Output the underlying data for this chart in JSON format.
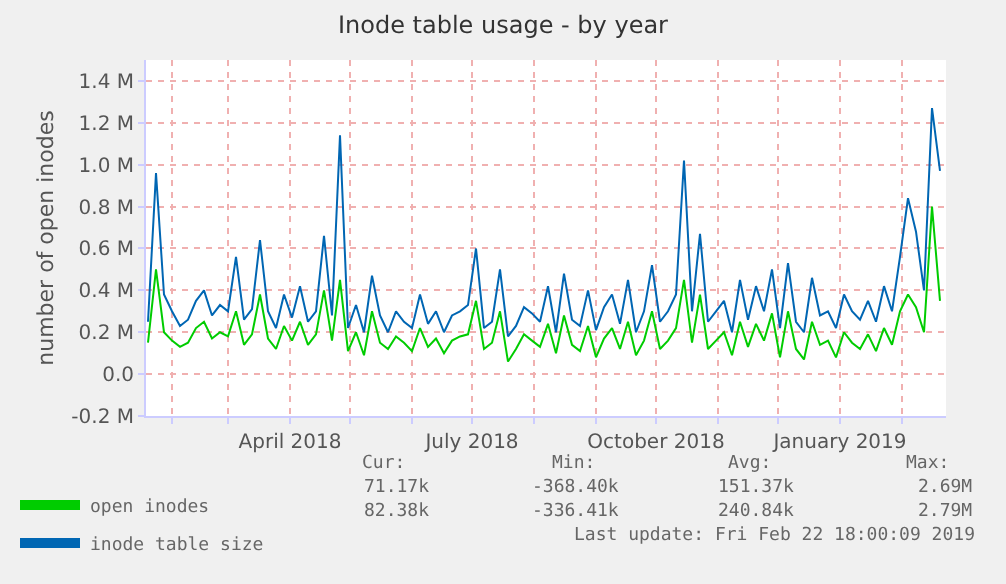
{
  "chart_data": {
    "type": "line",
    "title": "Inode table usage - by year",
    "ylabel": "number of open inodes",
    "x": [
      "2018-01-20",
      "2018-01-24",
      "2018-01-28",
      "2018-02-01",
      "2018-02-05",
      "2018-02-09",
      "2018-02-13",
      "2018-02-17",
      "2018-02-21",
      "2018-02-25",
      "2018-03-01",
      "2018-03-05",
      "2018-03-09",
      "2018-03-13",
      "2018-03-17",
      "2018-03-21",
      "2018-03-25",
      "2018-03-29",
      "2018-04-02",
      "2018-04-06",
      "2018-04-10",
      "2018-04-14",
      "2018-04-18",
      "2018-04-22",
      "2018-04-26",
      "2018-04-30",
      "2018-05-04",
      "2018-05-08",
      "2018-05-12",
      "2018-05-16",
      "2018-05-20",
      "2018-05-24",
      "2018-05-28",
      "2018-06-01",
      "2018-06-05",
      "2018-06-09",
      "2018-06-13",
      "2018-06-17",
      "2018-06-21",
      "2018-06-25",
      "2018-06-29",
      "2018-07-03",
      "2018-07-07",
      "2018-07-11",
      "2018-07-15",
      "2018-07-19",
      "2018-07-23",
      "2018-07-27",
      "2018-07-31",
      "2018-08-04",
      "2018-08-08",
      "2018-08-12",
      "2018-08-16",
      "2018-08-20",
      "2018-08-24",
      "2018-08-28",
      "2018-09-01",
      "2018-09-05",
      "2018-09-09",
      "2018-09-13",
      "2018-09-17",
      "2018-09-21",
      "2018-09-25",
      "2018-09-29",
      "2018-10-03",
      "2018-10-07",
      "2018-10-11",
      "2018-10-15",
      "2018-10-19",
      "2018-10-23",
      "2018-10-27",
      "2018-10-31",
      "2018-11-04",
      "2018-11-08",
      "2018-11-12",
      "2018-11-16",
      "2018-11-20",
      "2018-11-24",
      "2018-11-28",
      "2018-12-02",
      "2018-12-06",
      "2018-12-10",
      "2018-12-14",
      "2018-12-18",
      "2018-12-22",
      "2018-12-26",
      "2018-12-30",
      "2019-01-03",
      "2019-01-07",
      "2019-01-11",
      "2019-01-15",
      "2019-01-19",
      "2019-01-23",
      "2019-01-27",
      "2019-01-31",
      "2019-02-04",
      "2019-02-08",
      "2019-02-12",
      "2019-02-16",
      "2019-02-20"
    ],
    "series": [
      {
        "name": "open inodes",
        "color": "#00cc00",
        "values": [
          150000,
          500000,
          200000,
          160000,
          130000,
          150000,
          220000,
          250000,
          170000,
          200000,
          180000,
          300000,
          140000,
          190000,
          380000,
          170000,
          120000,
          230000,
          160000,
          250000,
          140000,
          190000,
          400000,
          160000,
          450000,
          110000,
          200000,
          90000,
          300000,
          150000,
          120000,
          180000,
          150000,
          110000,
          220000,
          130000,
          170000,
          100000,
          160000,
          180000,
          190000,
          350000,
          120000,
          150000,
          300000,
          60000,
          120000,
          190000,
          160000,
          130000,
          240000,
          100000,
          280000,
          140000,
          110000,
          230000,
          80000,
          170000,
          220000,
          120000,
          250000,
          90000,
          160000,
          300000,
          120000,
          160000,
          220000,
          450000,
          150000,
          380000,
          120000,
          160000,
          200000,
          90000,
          250000,
          130000,
          240000,
          160000,
          290000,
          80000,
          300000,
          120000,
          70000,
          250000,
          140000,
          160000,
          80000,
          200000,
          150000,
          120000,
          190000,
          110000,
          220000,
          140000,
          300000,
          380000,
          320000,
          200000,
          800000,
          350000
        ]
      },
      {
        "name": "inode table size",
        "color": "#0066b3",
        "values": [
          250000,
          960000,
          380000,
          300000,
          230000,
          260000,
          350000,
          400000,
          280000,
          330000,
          300000,
          560000,
          260000,
          310000,
          640000,
          300000,
          220000,
          380000,
          270000,
          420000,
          250000,
          300000,
          660000,
          280000,
          1140000,
          220000,
          330000,
          200000,
          470000,
          280000,
          200000,
          300000,
          250000,
          220000,
          380000,
          240000,
          300000,
          200000,
          280000,
          300000,
          330000,
          600000,
          220000,
          250000,
          500000,
          180000,
          230000,
          320000,
          290000,
          250000,
          420000,
          200000,
          480000,
          260000,
          230000,
          400000,
          210000,
          320000,
          380000,
          240000,
          450000,
          200000,
          300000,
          520000,
          250000,
          300000,
          380000,
          1020000,
          300000,
          670000,
          250000,
          300000,
          350000,
          200000,
          450000,
          260000,
          420000,
          300000,
          500000,
          220000,
          530000,
          250000,
          200000,
          460000,
          280000,
          300000,
          220000,
          380000,
          300000,
          260000,
          350000,
          250000,
          420000,
          300000,
          560000,
          840000,
          680000,
          400000,
          1270000,
          970000
        ]
      }
    ],
    "xlim": [
      "2018-01-19",
      "2019-02-23"
    ],
    "xticks": [
      {
        "value": "2018-02-01",
        "label": null
      },
      {
        "value": "2018-03-01",
        "label": null
      },
      {
        "value": "2018-04-01",
        "label": "April 2018"
      },
      {
        "value": "2018-05-01",
        "label": null
      },
      {
        "value": "2018-06-01",
        "label": null
      },
      {
        "value": "2018-07-01",
        "label": "July 2018"
      },
      {
        "value": "2018-08-01",
        "label": null
      },
      {
        "value": "2018-09-01",
        "label": null
      },
      {
        "value": "2018-10-01",
        "label": "October 2018"
      },
      {
        "value": "2018-11-01",
        "label": null
      },
      {
        "value": "2018-12-01",
        "label": null
      },
      {
        "value": "2019-01-01",
        "label": "January 2019"
      },
      {
        "value": "2019-02-01",
        "label": null
      }
    ],
    "ylim": [
      -200000,
      1500000
    ],
    "yticks": [
      {
        "value": -200000,
        "label": "-0.2 M"
      },
      {
        "value": 0,
        "label": "0.0"
      },
      {
        "value": 200000,
        "label": "0.2 M"
      },
      {
        "value": 400000,
        "label": "0.4 M"
      },
      {
        "value": 600000,
        "label": "0.6 M"
      },
      {
        "value": 800000,
        "label": "0.8 M"
      },
      {
        "value": 1000000,
        "label": "1.0 M"
      },
      {
        "value": 1200000,
        "label": "1.2 M"
      },
      {
        "value": 1400000,
        "label": "1.4 M"
      }
    ],
    "grid": true,
    "legend": "bottom left",
    "marker": "none",
    "line_style": "solid",
    "annotations": [
      "Cur:",
      "Min:",
      "Avg:",
      "Max:",
      "71.17k",
      "-368.40k",
      "151.37k",
      "2.69M",
      "82.38k",
      "-336.41k",
      "240.84k",
      "2.79M",
      "Last update: Fri Feb 22 18:00:09 2019"
    ]
  }
}
